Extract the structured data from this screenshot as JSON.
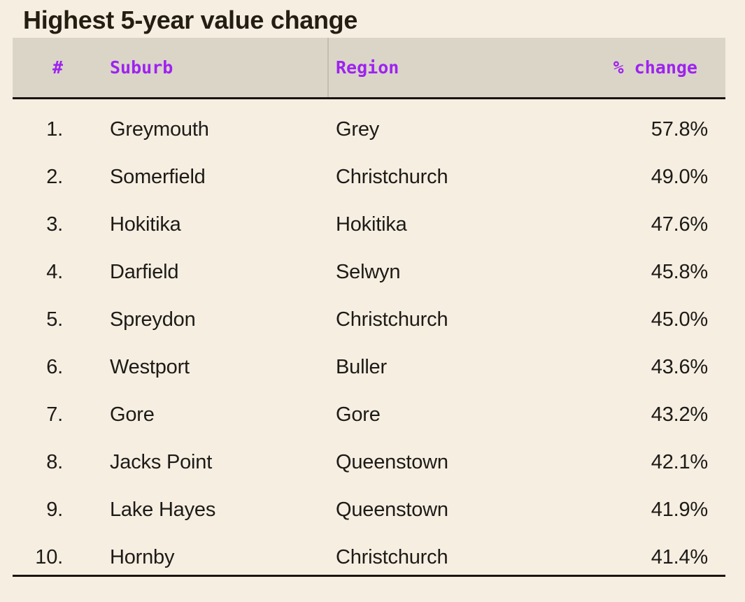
{
  "title": "Highest 5-year value change",
  "header": {
    "col_rank": "#",
    "col_suburb": "Suburb",
    "col_region": "Region",
    "col_change": "% change"
  },
  "table": {
    "rows": [
      {
        "rank": "1.",
        "suburb": "Greymouth",
        "region": "Grey",
        "change": "57.8%"
      },
      {
        "rank": "2.",
        "suburb": "Somerfield",
        "region": "Christchurch",
        "change": "49.0%"
      },
      {
        "rank": "3.",
        "suburb": "Hokitika",
        "region": "Hokitika",
        "change": "47.6%"
      },
      {
        "rank": "4.",
        "suburb": "Darfield",
        "region": "Selwyn",
        "change": "45.8%"
      },
      {
        "rank": "5.",
        "suburb": "Spreydon",
        "region": "Christchurch",
        "change": "45.0%"
      },
      {
        "rank": "6.",
        "suburb": "Westport",
        "region": "Buller",
        "change": "43.6%"
      },
      {
        "rank": "7.",
        "suburb": "Gore",
        "region": "Gore",
        "change": "43.2%"
      },
      {
        "rank": "8.",
        "suburb": "Jacks Point",
        "region": "Queenstown",
        "change": "42.1%"
      },
      {
        "rank": "9.",
        "suburb": "Lake Hayes",
        "region": "Queenstown",
        "change": "41.9%"
      },
      {
        "rank": "10.",
        "suburb": "Hornby",
        "region": "Christchurch",
        "change": "41.4%"
      }
    ]
  },
  "colors": {
    "page_background": "#f6eee1",
    "header_background": "#dbd5c8",
    "accent_purple": "#9e22f0",
    "rule_black": "#191410",
    "column_divider": "#c5beb0",
    "title_text": "#241d12",
    "body_text": "#1d1b18"
  },
  "chart_data": {
    "type": "table",
    "title": "Highest 5-year value change",
    "columns": [
      "#",
      "Suburb",
      "Region",
      "% change"
    ],
    "rows": [
      [
        "1.",
        "Greymouth",
        "Grey",
        "57.8%"
      ],
      [
        "2.",
        "Somerfield",
        "Christchurch",
        "49.0%"
      ],
      [
        "3.",
        "Hokitika",
        "Hokitika",
        "47.6%"
      ],
      [
        "4.",
        "Darfield",
        "Selwyn",
        "45.8%"
      ],
      [
        "5.",
        "Spreydon",
        "Christchurch",
        "45.0%"
      ],
      [
        "6.",
        "Westport",
        "Buller",
        "43.6%"
      ],
      [
        "7.",
        "Gore",
        "Gore",
        "43.2%"
      ],
      [
        "8.",
        "Jacks Point",
        "Queenstown",
        "42.1%"
      ],
      [
        "9.",
        "Lake Hayes",
        "Queenstown",
        "41.9%"
      ],
      [
        "10.",
        "Hornby",
        "Christchurch",
        "41.4%"
      ]
    ],
    "values_numeric": [
      57.8,
      49.0,
      47.6,
      45.8,
      45.0,
      43.6,
      43.2,
      42.1,
      41.9,
      41.4
    ]
  }
}
